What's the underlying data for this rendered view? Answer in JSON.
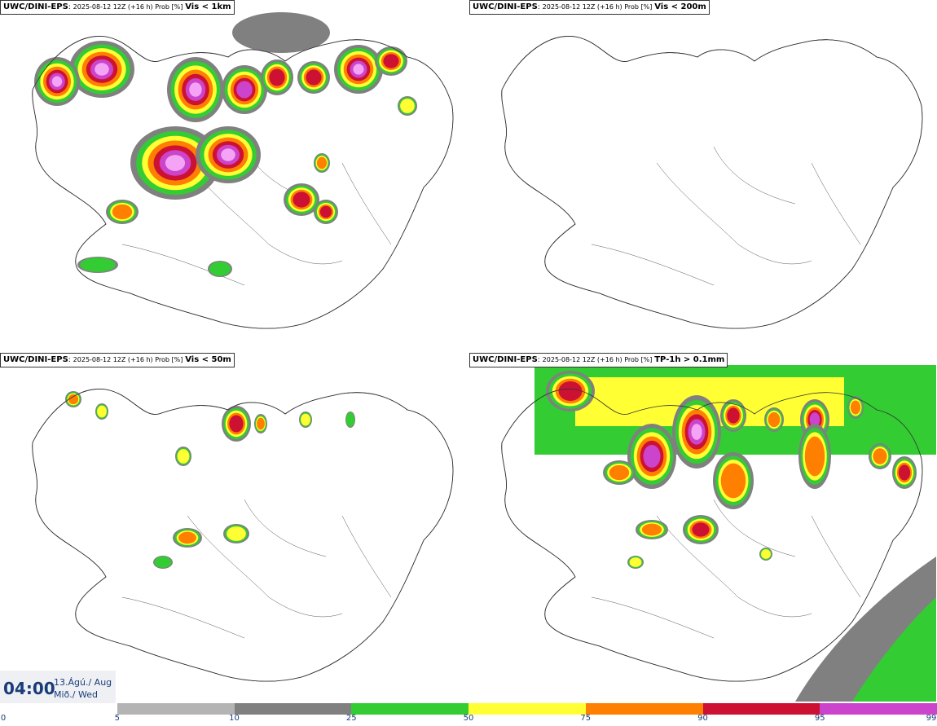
{
  "panels": [
    {
      "model": "UWC/DINI-EPS",
      "meta": "2025-08-12 12Z (+16 h) Prob [%]",
      "threshold": "Vis < 1km"
    },
    {
      "model": "UWC/DINI-EPS",
      "meta": "2025-08-12 12Z (+16 h) Prob [%]",
      "threshold": "Vis < 200m"
    },
    {
      "model": "UWC/DINI-EPS",
      "meta": "2025-08-12 12Z (+16 h) Prob [%]",
      "threshold": "Vis < 50m"
    },
    {
      "model": "UWC/DINI-EPS",
      "meta": "2025-08-12 12Z (+16 h) Prob [%]",
      "threshold": "TP-1h > 0.1mm"
    }
  ],
  "valid_time": {
    "time": "04:00",
    "date_line1": "13.Ágú./ Aug",
    "date_line2": "Mið./ Wed"
  },
  "colorbar": {
    "ticks": [
      "0",
      "5",
      "10",
      "25",
      "50",
      "75",
      "90",
      "95",
      "99"
    ],
    "colors": [
      "#ffffff",
      "#b4b4b4",
      "#808080",
      "#33cc33",
      "#ffff33",
      "#ff7f00",
      "#cc1133",
      "#cc44cc",
      "#f5a3f5"
    ]
  },
  "colors": {
    "text": "#1a3c78",
    "outline": "#333333"
  }
}
